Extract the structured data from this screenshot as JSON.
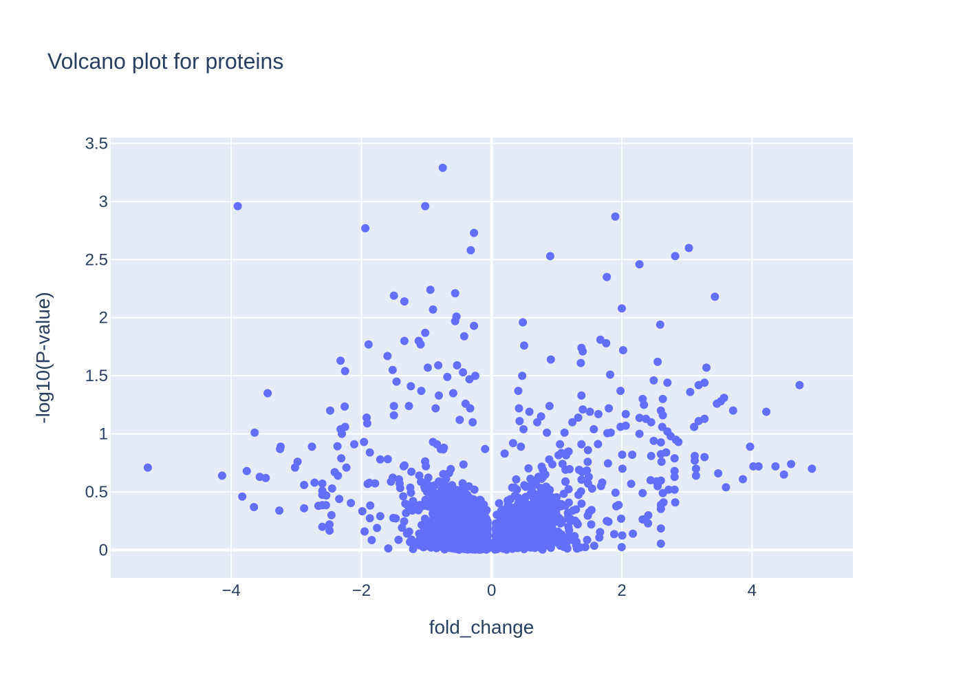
{
  "chart_data": {
    "type": "scatter",
    "title": "Volcano plot for proteins",
    "xlabel": "fold_change",
    "ylabel": "-log10(P-value)",
    "xlim": [
      -5.85,
      5.55
    ],
    "ylim": [
      -0.24,
      3.55
    ],
    "xticks": [
      -4,
      -2,
      0,
      2,
      4
    ],
    "xtick_labels": [
      "−4",
      "−2",
      "0",
      "2",
      "4"
    ],
    "yticks": [
      0,
      0.5,
      1,
      1.5,
      2,
      2.5,
      3,
      3.5
    ],
    "ytick_labels": [
      "0",
      "0.5",
      "1",
      "1.5",
      "2",
      "2.5",
      "3",
      "3.5"
    ],
    "grid": true,
    "marker_color": "#636efa",
    "plot_bg": "#e5ecf6",
    "text_color": "#2a3f5f",
    "points": [
      [
        -0.75,
        3.29
      ],
      [
        -3.9,
        2.96
      ],
      [
        -1.02,
        2.96
      ],
      [
        1.9,
        2.87
      ],
      [
        -1.94,
        2.77
      ],
      [
        -0.27,
        2.73
      ],
      [
        3.03,
        2.6
      ],
      [
        -0.32,
        2.58
      ],
      [
        0.9,
        2.53
      ],
      [
        2.82,
        2.53
      ],
      [
        2.27,
        2.46
      ],
      [
        1.77,
        2.35
      ],
      [
        -0.94,
        2.24
      ],
      [
        -0.56,
        2.21
      ],
      [
        -1.5,
        2.19
      ],
      [
        3.43,
        2.18
      ],
      [
        -1.34,
        2.14
      ],
      [
        2.0,
        2.08
      ],
      [
        -0.9,
        2.07
      ],
      [
        -0.54,
        2.01
      ],
      [
        -0.56,
        1.97
      ],
      [
        -0.27,
        1.93
      ],
      [
        2.59,
        1.94
      ],
      [
        0.48,
        1.96
      ],
      [
        -1.02,
        1.87
      ],
      [
        -0.42,
        1.84
      ],
      [
        1.67,
        1.81
      ],
      [
        -1.34,
        1.8
      ],
      [
        -1.12,
        1.8
      ],
      [
        -1.09,
        1.77
      ],
      [
        -1.89,
        1.77
      ],
      [
        1.76,
        1.78
      ],
      [
        0.5,
        1.76
      ],
      [
        1.38,
        1.74
      ],
      [
        1.4,
        1.71
      ],
      [
        2.02,
        1.72
      ],
      [
        -1.6,
        1.67
      ],
      [
        0.91,
        1.64
      ],
      [
        -2.32,
        1.63
      ],
      [
        2.55,
        1.62
      ],
      [
        1.37,
        1.61
      ],
      [
        -0.82,
        1.59
      ],
      [
        -0.53,
        1.59
      ],
      [
        -0.98,
        1.57
      ],
      [
        3.3,
        1.57
      ],
      [
        -2.25,
        1.54
      ],
      [
        -1.52,
        1.55
      ],
      [
        -0.44,
        1.53
      ],
      [
        1.82,
        1.51
      ],
      [
        0.47,
        1.5
      ],
      [
        -0.25,
        1.5
      ],
      [
        -0.68,
        1.49
      ],
      [
        -0.34,
        1.47
      ],
      [
        2.49,
        1.46
      ],
      [
        -1.46,
        1.45
      ],
      [
        2.7,
        1.44
      ],
      [
        3.27,
        1.44
      ],
      [
        4.73,
        1.42
      ],
      [
        3.18,
        1.42
      ],
      [
        -1.24,
        1.41
      ],
      [
        -1.08,
        1.37
      ],
      [
        1.98,
        1.37
      ],
      [
        3.05,
        1.36
      ],
      [
        0.41,
        1.37
      ],
      [
        -3.44,
        1.35
      ],
      [
        -0.59,
        1.35
      ],
      [
        -0.81,
        1.33
      ],
      [
        1.38,
        1.33
      ],
      [
        3.57,
        1.31
      ],
      [
        2.32,
        1.3
      ],
      [
        2.63,
        1.3
      ],
      [
        3.52,
        1.28
      ],
      [
        -0.4,
        1.26
      ],
      [
        3.46,
        1.26
      ],
      [
        2.34,
        1.25
      ],
      [
        -1.5,
        1.24
      ],
      [
        -1.27,
        1.24
      ],
      [
        0.89,
        1.24
      ],
      [
        -0.33,
        1.22
      ],
      [
        -0.86,
        1.22
      ],
      [
        0.42,
        1.22
      ],
      [
        1.4,
        1.21
      ],
      [
        1.8,
        1.22
      ],
      [
        3.71,
        1.2
      ],
      [
        -2.48,
        1.2
      ],
      [
        4.22,
        1.19
      ],
      [
        0.58,
        1.19
      ],
      [
        1.51,
        1.19
      ],
      [
        1.64,
        1.17
      ],
      [
        2.06,
        1.17
      ],
      [
        -1.5,
        1.16
      ],
      [
        0.76,
        1.15
      ],
      [
        2.63,
        1.16
      ],
      [
        -1.92,
        1.14
      ],
      [
        1.33,
        1.14
      ],
      [
        2.37,
        1.13
      ],
      [
        3.27,
        1.13
      ],
      [
        -0.49,
        1.12
      ],
      [
        3.18,
        1.11
      ],
      [
        0.43,
        1.11
      ],
      [
        1.24,
        1.1
      ],
      [
        2.45,
        1.1
      ],
      [
        -1.91,
        1.09
      ],
      [
        -0.29,
        1.1
      ],
      [
        0.7,
        1.1
      ],
      [
        2.06,
        1.07
      ],
      [
        -2.25,
        1.06
      ],
      [
        2.62,
        1.06
      ],
      [
        3.11,
        1.06
      ],
      [
        -2.32,
        1.04
      ],
      [
        0.49,
        1.04
      ],
      [
        1.57,
        1.04
      ],
      [
        2.7,
        1.02
      ],
      [
        -3.64,
        1.01
      ],
      [
        0.85,
        1.01
      ],
      [
        1.12,
        1.01
      ],
      [
        -2.3,
        1.0
      ],
      [
        1.83,
        1.01
      ],
      [
        2.27,
        1.0
      ],
      [
        2.75,
        0.98
      ],
      [
        2.83,
        0.95
      ],
      [
        -0.9,
        0.93
      ],
      [
        -1.96,
        0.93
      ],
      [
        2.49,
        0.94
      ],
      [
        2.87,
        0.93
      ],
      [
        0.33,
        0.92
      ],
      [
        1.38,
        0.91
      ],
      [
        -0.84,
        0.91
      ],
      [
        1.05,
        0.91
      ],
      [
        -3.24,
        0.89
      ],
      [
        -2.11,
        0.91
      ],
      [
        -2.76,
        0.89
      ],
      [
        3.97,
        0.89
      ],
      [
        -3.25,
        0.87
      ],
      [
        0.45,
        0.89
      ],
      [
        2.68,
        0.84
      ],
      [
        -1.87,
        0.84
      ],
      [
        -0.1,
        0.87
      ],
      [
        1.48,
        0.86
      ],
      [
        0.2,
        0.83
      ],
      [
        2.16,
        0.82
      ],
      [
        2.45,
        0.81
      ],
      [
        3.12,
        0.81
      ],
      [
        3.27,
        0.8
      ],
      [
        2.81,
        0.79
      ],
      [
        -2.31,
        0.79
      ],
      [
        -1.71,
        0.78
      ],
      [
        3.12,
        0.77
      ],
      [
        -2.98,
        0.76
      ],
      [
        2.61,
        0.76
      ],
      [
        4.6,
        0.74
      ],
      [
        4.02,
        0.72
      ],
      [
        4.36,
        0.72
      ],
      [
        4.1,
        0.72
      ],
      [
        -5.28,
        0.71
      ],
      [
        2.01,
        0.7
      ],
      [
        3.14,
        0.7
      ],
      [
        4.92,
        0.7
      ],
      [
        -3.02,
        0.71
      ],
      [
        -2.23,
        0.71
      ],
      [
        -3.76,
        0.68
      ],
      [
        3.48,
        0.66
      ],
      [
        2.81,
        0.68
      ],
      [
        -2.41,
        0.67
      ],
      [
        4.49,
        0.65
      ],
      [
        -4.14,
        0.64
      ],
      [
        -2.36,
        0.64
      ],
      [
        3.14,
        0.64
      ],
      [
        -3.56,
        0.63
      ],
      [
        -3.47,
        0.62
      ],
      [
        2.81,
        0.63
      ],
      [
        3.86,
        0.61
      ],
      [
        2.53,
        0.59
      ],
      [
        -2.72,
        0.58
      ],
      [
        2.55,
        0.55
      ],
      [
        -2.88,
        0.56
      ],
      [
        3.6,
        0.54
      ],
      [
        2.72,
        0.52
      ],
      [
        -2.6,
        0.51
      ],
      [
        -2.45,
        0.53
      ],
      [
        2.81,
        0.52
      ],
      [
        2.63,
        0.49
      ],
      [
        -3.83,
        0.46
      ],
      [
        -2.54,
        0.47
      ],
      [
        2.32,
        0.49
      ],
      [
        -2.34,
        0.44
      ],
      [
        2.82,
        0.41
      ],
      [
        2.64,
        0.41
      ],
      [
        -3.65,
        0.37
      ],
      [
        -2.88,
        0.36
      ],
      [
        -2.66,
        0.38
      ],
      [
        -3.26,
        0.34
      ],
      [
        -2.46,
        0.3
      ],
      [
        1.99,
        0.27
      ],
      [
        -2.49,
        0.22
      ],
      [
        1.77,
        0.25
      ],
      [
        -1.95,
        0.16
      ],
      [
        2.17,
        0.14
      ],
      [
        -1.76,
        0.19
      ],
      [
        -1.02,
        0.12
      ]
    ]
  }
}
